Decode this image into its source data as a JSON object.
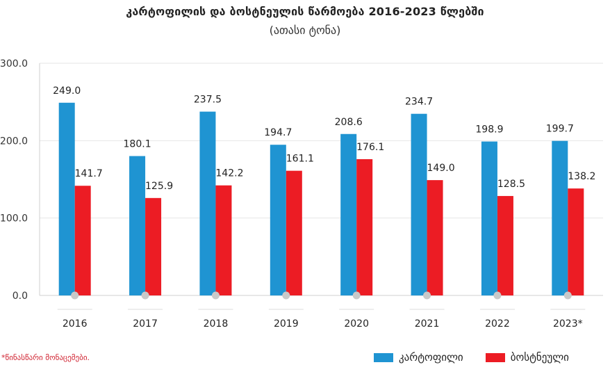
{
  "title": "კარტოფილის და ბოსტნეულის წარმოება 2016-2023 წლებში",
  "subtitle": "(ათასი ტონა)",
  "footnote": "*წინასწარი მონაცემები.",
  "colors": {
    "potato": "#1f94d2",
    "vegetables": "#ec1c24",
    "grid": "#e6e6e6",
    "marker": "#c9c9c9"
  },
  "chart_data": {
    "type": "bar",
    "title": "კარტოფილის და ბოსტნეულის წარმოება 2016-2023 წლებში",
    "subtitle": "(ათასი ტონა)",
    "xlabel": "",
    "ylabel": "",
    "ylim": [
      0,
      300
    ],
    "yticks": [
      0,
      100,
      200,
      300
    ],
    "ytick_labels": [
      "0.0",
      "100.0",
      "200.0",
      "300.0"
    ],
    "grid": true,
    "legend_position": "bottom-right",
    "categories": [
      "2016",
      "2017",
      "2018",
      "2019",
      "2020",
      "2021",
      "2022",
      "2023*"
    ],
    "series": [
      {
        "name": "კარტოფილი",
        "color": "#1f94d2",
        "values": [
          249.0,
          180.1,
          237.5,
          194.7,
          208.6,
          234.7,
          198.9,
          199.7
        ],
        "labels": [
          "249.0",
          "180.1",
          "237.5",
          "194.7",
          "208.6",
          "234.7",
          "198.9",
          "199.7"
        ]
      },
      {
        "name": "ბოსტნეული",
        "color": "#ec1c24",
        "values": [
          141.7,
          125.9,
          142.2,
          161.1,
          176.1,
          149.0,
          128.5,
          138.2
        ],
        "labels": [
          "141.7",
          "125.9",
          "142.2",
          "161.1",
          "176.1",
          "149.0",
          "128.5",
          "138.2"
        ]
      }
    ]
  }
}
